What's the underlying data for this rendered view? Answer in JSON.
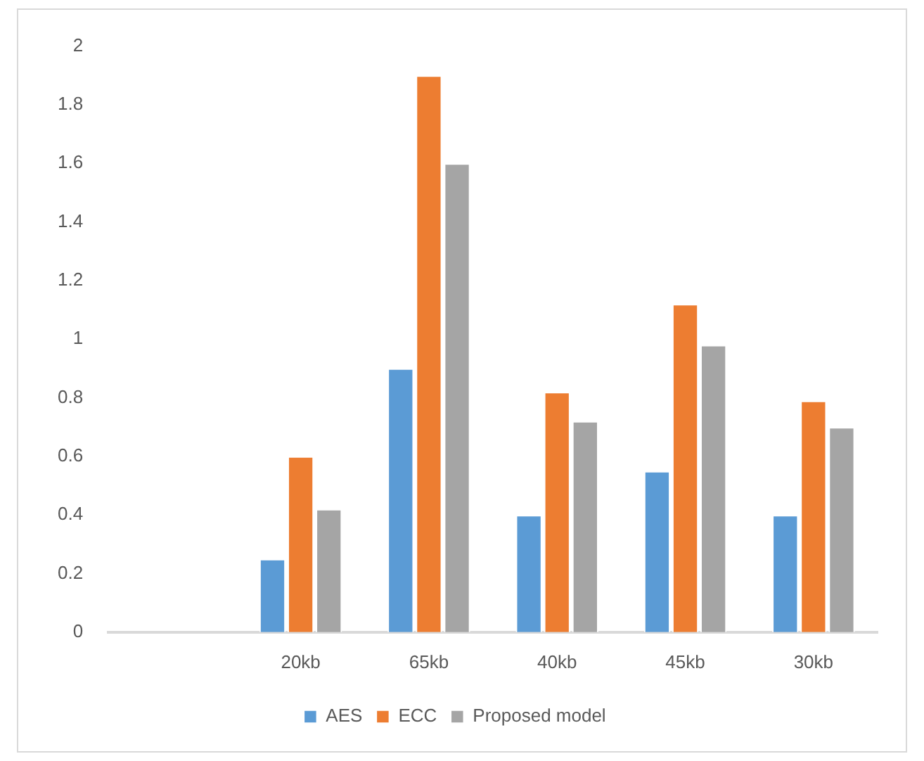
{
  "chart_data": {
    "type": "bar",
    "categories": [
      null,
      "20kb",
      "65kb",
      "40kb",
      "45kb",
      "30kb"
    ],
    "series": [
      {
        "name": "AES",
        "color": "#5b9bd5",
        "values": [
          null,
          0.25,
          0.9,
          0.4,
          0.55,
          0.4
        ]
      },
      {
        "name": "ECC",
        "color": "#ed7d31",
        "values": [
          null,
          0.6,
          1.9,
          0.82,
          1.12,
          0.79
        ]
      },
      {
        "name": "Proposed model",
        "color": "#a5a5a5",
        "values": [
          null,
          0.42,
          1.6,
          0.72,
          0.98,
          0.7
        ]
      }
    ],
    "ylim": [
      0,
      2
    ],
    "yticks": [
      0,
      0.2,
      0.4,
      0.6,
      0.8,
      1,
      1.2,
      1.4,
      1.6,
      1.8,
      2
    ],
    "grid": false,
    "legend": "bottom"
  }
}
